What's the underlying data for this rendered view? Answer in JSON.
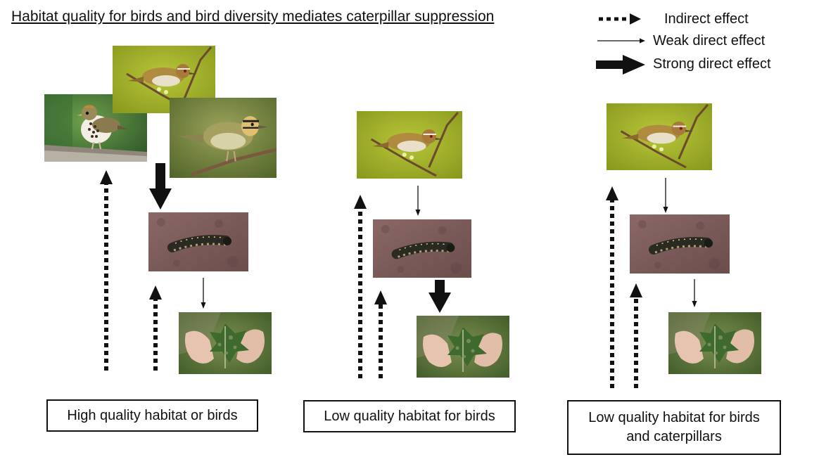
{
  "title": "Habitat quality for birds and bird diversity mediates caterpillar suppression",
  "legend": {
    "indirect": "Indirect effect",
    "weak": "Weak direct effect",
    "strong": "Strong direct effect"
  },
  "panels": [
    {
      "caption": "High quality habitat or birds"
    },
    {
      "caption": "Low quality habitat for birds"
    },
    {
      "caption_line1": "Low quality habitat for birds",
      "caption_line2": "and caterpillars"
    }
  ],
  "colors": {
    "ink": "#111111",
    "warbler_bg": "#a8b82c",
    "ovenbird_bg": "#4f8a3a",
    "caterpillar_bg": "#7a5a58",
    "leaf_bg": "#5f7a3a"
  },
  "icons": [
    "bird-photo",
    "caterpillar-photo",
    "hands-holding-leaf-photo"
  ]
}
